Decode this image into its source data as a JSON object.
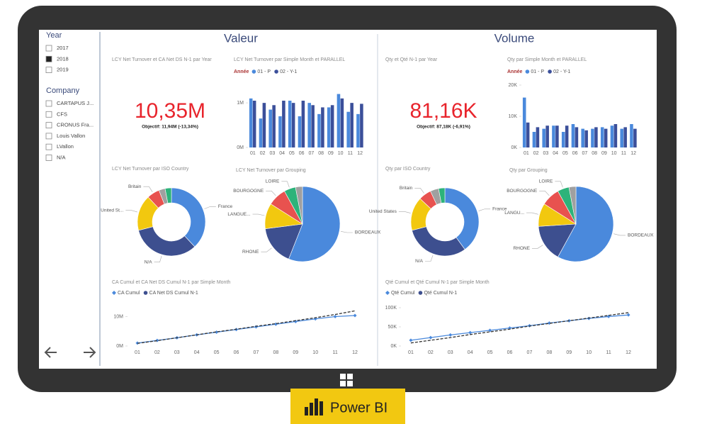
{
  "slicers": [
    {
      "title": "Year",
      "items": [
        {
          "label": "2017",
          "checked": false
        },
        {
          "label": "2018",
          "checked": true
        },
        {
          "label": "2019",
          "checked": false
        }
      ]
    },
    {
      "title": "Company",
      "items": [
        {
          "label": "CARTAPUS J...",
          "checked": false
        },
        {
          "label": "CFS",
          "checked": false
        },
        {
          "label": "CRONUS Fra...",
          "checked": false
        },
        {
          "label": "Louis Vallon",
          "checked": false
        },
        {
          "label": "LVallon",
          "checked": false
        },
        {
          "label": "N/A",
          "checked": false
        }
      ]
    }
  ],
  "sections": [
    {
      "title": "Valeur",
      "charts": [
        {
          "type": "card",
          "title": "LCY Net Turnover et CA Net DS N-1 par Year",
          "value": "10,35M",
          "subtitle": "Objectif: 11,94M (-13,34%)",
          "color": "#e8242c"
        },
        {
          "type": "bar",
          "title": "LCY Net Turnover par Simple Month et PARALLEL",
          "legend_title": "Année",
          "categories": [
            "01",
            "02",
            "03",
            "04",
            "05",
            "06",
            "07",
            "08",
            "09",
            "10",
            "11",
            "12"
          ],
          "series": [
            {
              "name": "01 - P",
              "color": "#4a89dc",
              "values": [
                1100000,
                650000,
                850000,
                700000,
                1050000,
                700000,
                1000000,
                750000,
                900000,
                1200000,
                800000,
                750000
              ]
            },
            {
              "name": "02 - Y-1",
              "color": "#3b4f9a",
              "values": [
                1050000,
                1000000,
                950000,
                1050000,
                1000000,
                1050000,
                950000,
                900000,
                950000,
                1100000,
                1000000,
                980000
              ]
            }
          ],
          "ylim": [
            0,
            1400000
          ],
          "yticks": [
            {
              "value": 0,
              "label": "0M"
            },
            {
              "value": 1000000,
              "label": "1M"
            }
          ]
        },
        {
          "type": "donut",
          "title": "LCY Net Turnover par ISO Country",
          "categories": [
            "France",
            "N/A",
            "United St...",
            "Britain",
            null,
            null
          ],
          "values": [
            38,
            33,
            17,
            6,
            3,
            3
          ],
          "colors": [
            "#4a89dc",
            "#3d4f8f",
            "#f2c80f",
            "#e8524f",
            "#a0a0a0",
            "#2db37a"
          ]
        },
        {
          "type": "pie",
          "title": "LCY Net Turnover par Grouping",
          "categories": [
            "BORDEAUX",
            "RHONE",
            "LANGUE...",
            "BOURGOGNE",
            "LOIRE",
            null
          ],
          "values": [
            56,
            17,
            11,
            8,
            5,
            3
          ],
          "colors": [
            "#4a89dc",
            "#3d4f8f",
            "#f2c80f",
            "#e8524f",
            "#2db37a",
            "#a0a0a0"
          ]
        },
        {
          "type": "line",
          "title": "CA Cumul et CA Net DS Cumul N-1 par Simple Month",
          "categories": [
            "01",
            "02",
            "03",
            "04",
            "05",
            "06",
            "07",
            "08",
            "09",
            "10",
            "11",
            "12"
          ],
          "series": [
            {
              "name": "CA Cumul",
              "color": "#4a89dc",
              "style": "solid",
              "values": [
                1000000,
                1900000,
                2800000,
                3800000,
                4700000,
                5600000,
                6500000,
                7400000,
                8300000,
                9200000,
                10000000,
                10350000
              ]
            },
            {
              "name": "CA Net DS Cumul N-1",
              "color": "#3d4f8f",
              "style": "dashed",
              "values": [
                900000,
                1800000,
                2800000,
                3800000,
                4800000,
                5700000,
                6700000,
                7600000,
                8600000,
                9600000,
                10700000,
                11940000
              ]
            }
          ],
          "ylim": [
            0,
            13000000
          ],
          "yticks": [
            {
              "value": 0,
              "label": "0M"
            },
            {
              "value": 10000000,
              "label": "10M"
            }
          ]
        }
      ]
    },
    {
      "title": "Volume",
      "charts": [
        {
          "type": "card",
          "title": "Qty et Qté N-1 par Year",
          "value": "81,16K",
          "subtitle": "Objectif: 87,18K (-6,91%)",
          "color": "#e8242c"
        },
        {
          "type": "bar",
          "title": "Qty par Simple Month et PARALLEL",
          "legend_title": "Année",
          "categories": [
            "01",
            "02",
            "03",
            "04",
            "05",
            "06",
            "07",
            "08",
            "09",
            "10",
            "11",
            "12"
          ],
          "series": [
            {
              "name": "01 - P",
              "color": "#4a89dc",
              "values": [
                16000,
                5000,
                6000,
                7000,
                5000,
                7500,
                6000,
                6000,
                6500,
                7000,
                6000,
                7500
              ]
            },
            {
              "name": "02 - Y-1",
              "color": "#3b4f9a",
              "values": [
                8000,
                6500,
                7000,
                7000,
                7000,
                6500,
                5500,
                6500,
                6000,
                7500,
                6500,
                6000
              ]
            }
          ],
          "ylim": [
            0,
            20000
          ],
          "yticks": [
            {
              "value": 0,
              "label": "0K"
            },
            {
              "value": 10000,
              "label": "10K"
            },
            {
              "value": 20000,
              "label": "20K"
            }
          ]
        },
        {
          "type": "donut",
          "title": "Qty par ISO Country",
          "categories": [
            "France",
            "N/A",
            "United States",
            "Britain",
            null,
            null
          ],
          "values": [
            40,
            31,
            16,
            6,
            4,
            3
          ],
          "colors": [
            "#4a89dc",
            "#3d4f8f",
            "#f2c80f",
            "#e8524f",
            "#a0a0a0",
            "#2db37a"
          ]
        },
        {
          "type": "pie",
          "title": "Qty par Grouping",
          "categories": [
            "BORDEAUX",
            "RHONE",
            "LANGU...",
            "BOURGOGNE",
            "LOIRE",
            null
          ],
          "values": [
            58,
            16,
            10,
            8,
            5,
            3
          ],
          "colors": [
            "#4a89dc",
            "#3d4f8f",
            "#f2c80f",
            "#e8524f",
            "#2db37a",
            "#a0a0a0"
          ]
        },
        {
          "type": "line",
          "title": "Qté Cumul et Qté Cumul N-1 par Simple Month",
          "categories": [
            "01",
            "02",
            "03",
            "04",
            "05",
            "06",
            "07",
            "08",
            "09",
            "10",
            "11",
            "12"
          ],
          "series": [
            {
              "name": "Qté Cumul",
              "color": "#4a89dc",
              "style": "solid",
              "values": [
                15000,
                22000,
                29000,
                35000,
                41000,
                47000,
                53000,
                60000,
                66000,
                72000,
                77000,
                81160
              ]
            },
            {
              "name": "Qté Cumul N-1",
              "color": "#3d4f8f",
              "style": "dashed",
              "values": [
                8000,
                15000,
                22000,
                30000,
                37000,
                44000,
                52000,
                59000,
                66000,
                73000,
                80000,
                87180
              ]
            }
          ],
          "ylim": [
            0,
            100000
          ],
          "yticks": [
            {
              "value": 0,
              "label": "0K"
            },
            {
              "value": 50000,
              "label": "50K"
            },
            {
              "value": 100000,
              "label": "100K"
            }
          ]
        }
      ]
    }
  ],
  "brand": "Power BI"
}
